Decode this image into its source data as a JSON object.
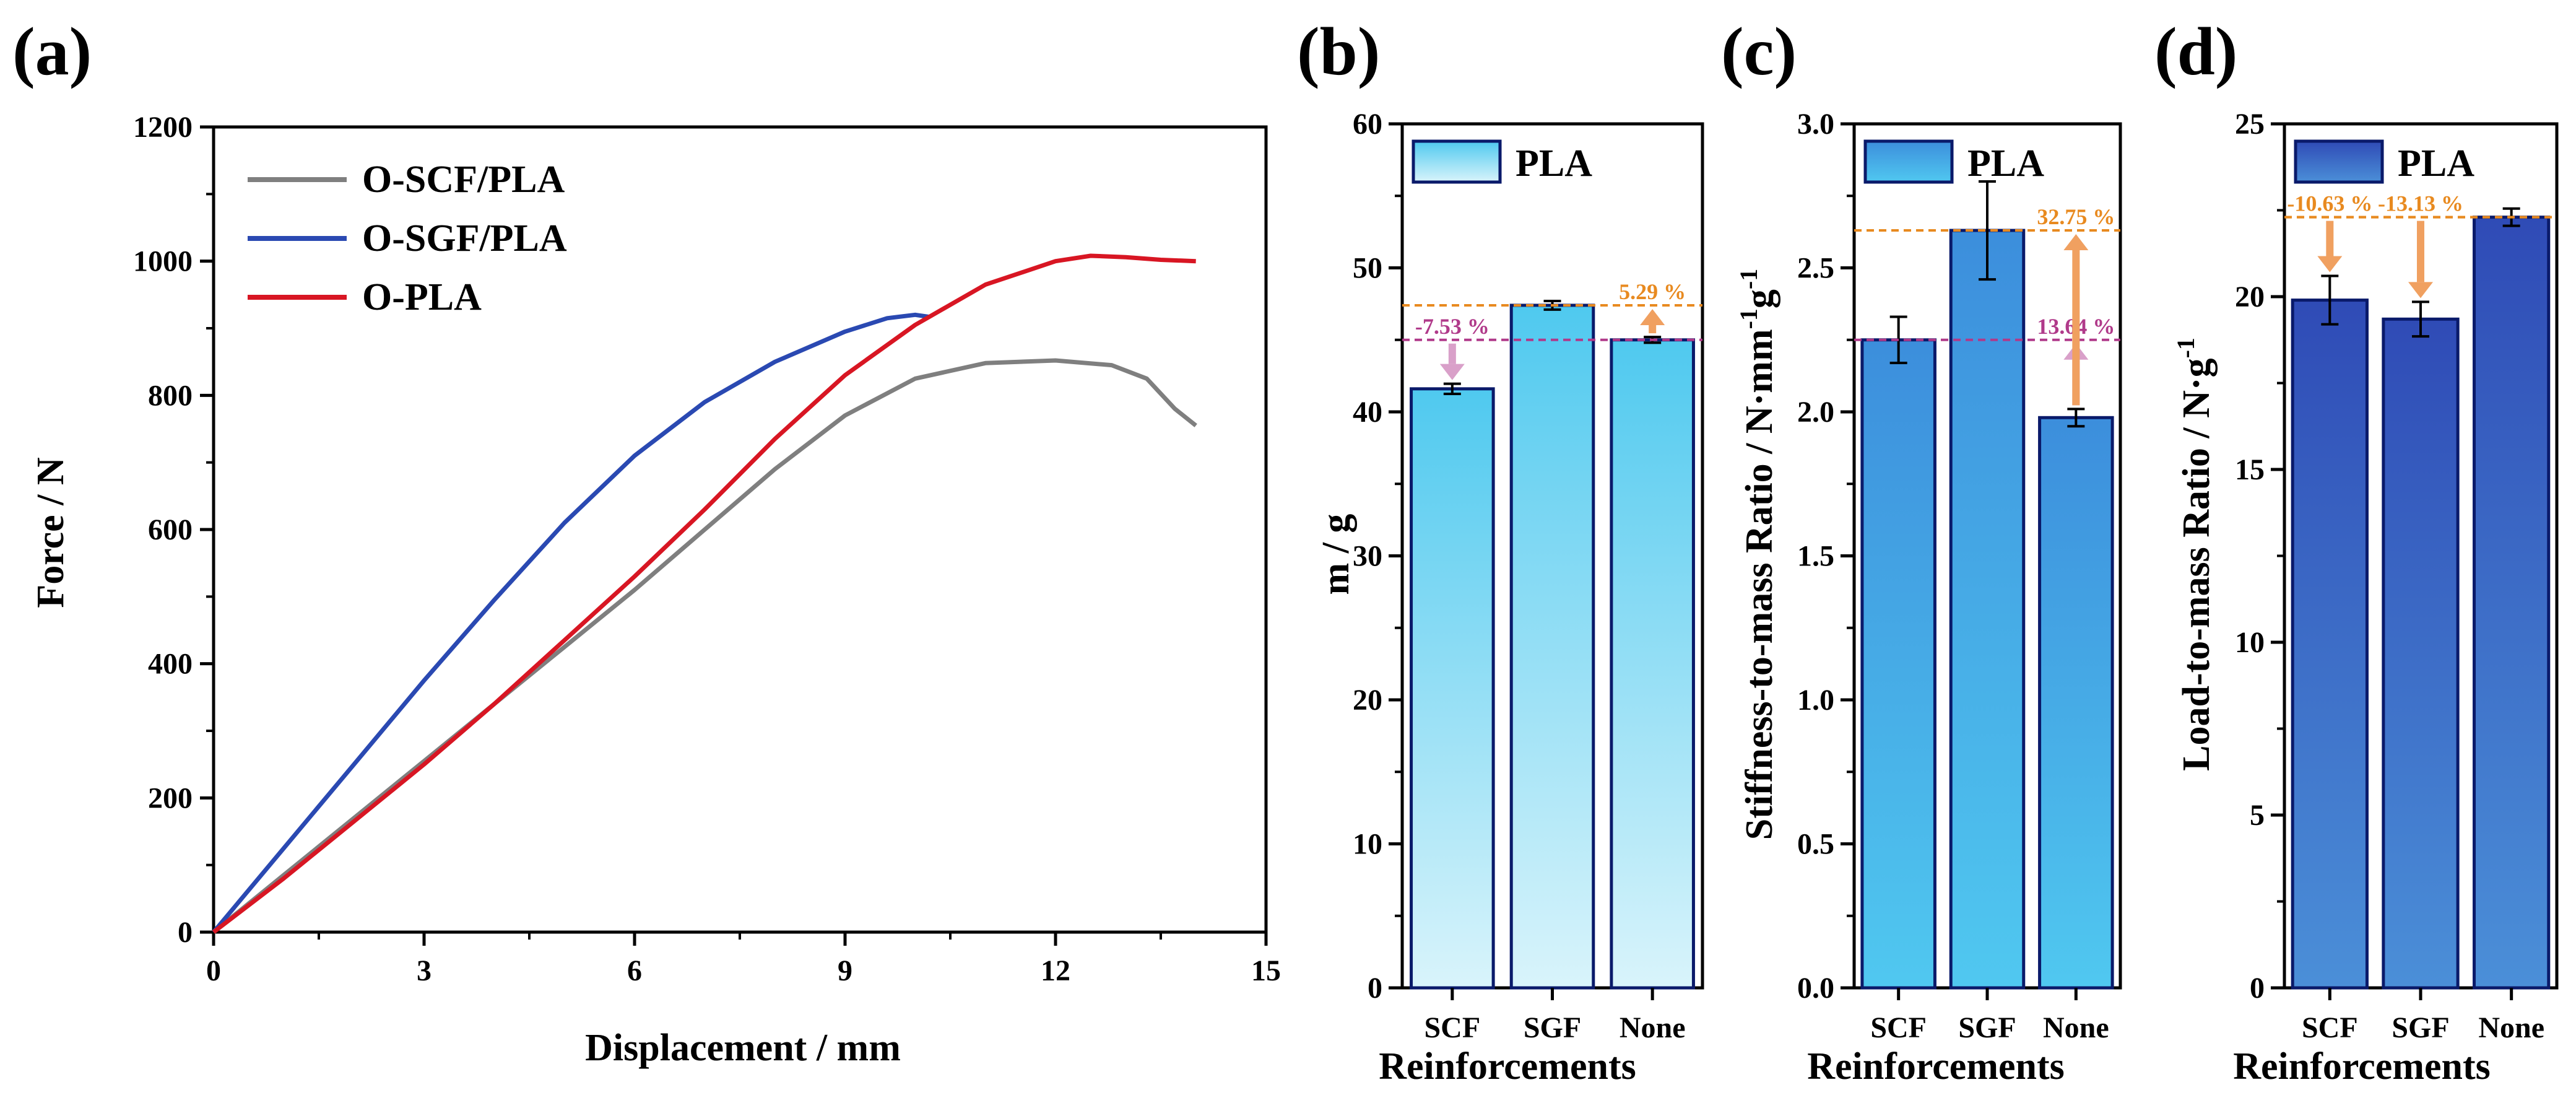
{
  "panel_labels": [
    "(a)",
    "(b)",
    "(c)",
    "(d)"
  ],
  "colors": {
    "scf": "#7f7f7f",
    "sgf": "#2a49b2",
    "pla": "#d81623",
    "orange": "#f0a060",
    "orange_line": "#e88a20",
    "pink": "#d9a0c9",
    "pink_line": "#b03a8a",
    "bar_b_top": "#4fc9ef",
    "bar_b_bottom": "#d9f4fb",
    "bar_c_top": "#3c8edc",
    "bar_c_bottom": "#50c8f0",
    "bar_d_top": "#2f4bb6",
    "bar_d_bottom": "#4b8fd8",
    "bar_stroke": "#0a1a6a"
  },
  "chart_data": [
    {
      "type": "line",
      "panel": "(a)",
      "xlabel": "Displacement / mm",
      "ylabel": "Force / N",
      "xlim": [
        0,
        15
      ],
      "ylim": [
        0,
        1200
      ],
      "xticks": [
        0,
        3,
        6,
        9,
        12,
        15
      ],
      "yticks": [
        0,
        200,
        400,
        600,
        800,
        1000,
        1200
      ],
      "legend_position": "top-left",
      "series": [
        {
          "name": "O-SCF/PLA",
          "color_key": "scf",
          "points": [
            [
              0,
              0
            ],
            [
              1,
              85
            ],
            [
              2,
              170
            ],
            [
              3,
              255
            ],
            [
              4,
              340
            ],
            [
              5,
              425
            ],
            [
              6,
              510
            ],
            [
              7,
              600
            ],
            [
              8,
              690
            ],
            [
              9,
              770
            ],
            [
              10,
              825
            ],
            [
              11,
              848
            ],
            [
              12,
              852
            ],
            [
              12.8,
              845
            ],
            [
              13.3,
              825
            ],
            [
              13.7,
              780
            ],
            [
              14,
              755
            ]
          ]
        },
        {
          "name": "O-SGF/PLA",
          "color_key": "sgf",
          "points": [
            [
              0,
              0
            ],
            [
              1,
              125
            ],
            [
              2,
              250
            ],
            [
              3,
              375
            ],
            [
              4,
              495
            ],
            [
              5,
              610
            ],
            [
              6,
              710
            ],
            [
              7,
              790
            ],
            [
              8,
              850
            ],
            [
              9,
              895
            ],
            [
              9.6,
              915
            ],
            [
              10,
              920
            ],
            [
              10.2,
              917
            ]
          ]
        },
        {
          "name": "O-PLA",
          "color_key": "pla",
          "points": [
            [
              0,
              0
            ],
            [
              1,
              80
            ],
            [
              2,
              165
            ],
            [
              3,
              250
            ],
            [
              4,
              340
            ],
            [
              5,
              435
            ],
            [
              6,
              530
            ],
            [
              7,
              630
            ],
            [
              8,
              735
            ],
            [
              9,
              830
            ],
            [
              10,
              905
            ],
            [
              11,
              965
            ],
            [
              12,
              1000
            ],
            [
              12.5,
              1008
            ],
            [
              13,
              1006
            ],
            [
              13.5,
              1002
            ],
            [
              14,
              1000
            ]
          ]
        }
      ]
    },
    {
      "type": "bar",
      "panel": "(b)",
      "xlabel": "Reinforcements",
      "ylabel": "m / g",
      "categories": [
        "SCF",
        "SGF",
        "None"
      ],
      "values": [
        41.6,
        47.4,
        45.0
      ],
      "errors": [
        0.35,
        0.3,
        0.2
      ],
      "ylim": [
        0,
        60
      ],
      "yticks": [
        0,
        10,
        20,
        30,
        40,
        50,
        60
      ],
      "legend": "PLA",
      "gradient": [
        "bar_b_top",
        "bar_b_bottom"
      ],
      "annotations": [
        {
          "text": "-7.53 %",
          "color_key": "pink_line",
          "from_cat": 0,
          "ref": 45.0,
          "to": 41.6,
          "arrow": "down"
        },
        {
          "text": "5.29 %",
          "color_key": "orange_line",
          "from_cat": 2,
          "ref": 47.4,
          "to": 45.0,
          "arrow": "up"
        }
      ]
    },
    {
      "type": "bar",
      "panel": "(c)",
      "xlabel": "Reinforcements",
      "ylabel": "Stiffness-to-mass Ratio / N·mm",
      "ylabel_sup1": "-1",
      "ylabel_mid": "g",
      "ylabel_sup2": "-1",
      "categories": [
        "SCF",
        "SGF",
        "None"
      ],
      "values": [
        2.25,
        2.63,
        1.98
      ],
      "errors": [
        0.08,
        0.17,
        0.03
      ],
      "ylim": [
        0,
        3.0
      ],
      "yticks": [
        "0.0",
        "0.5",
        "1.0",
        "1.5",
        "2.0",
        "2.5",
        "3.0"
      ],
      "legend": "PLA",
      "gradient": [
        "bar_c_top",
        "bar_c_bottom"
      ],
      "annotations": [
        {
          "text": "13.64 %",
          "color_key": "pink_line",
          "from_cat": 2,
          "ref": 2.25,
          "to": 1.98,
          "arrow": "up"
        },
        {
          "text": "32.75 %",
          "color_key": "orange_line",
          "from_cat": 2,
          "ref": 2.63,
          "to": 1.98,
          "arrow": "up"
        }
      ]
    },
    {
      "type": "bar",
      "panel": "(d)",
      "xlabel": "Reinforcements",
      "ylabel": "Load-to-mass Ratio / N·g",
      "ylabel_sup1": "-1",
      "categories": [
        "SCF",
        "SGF",
        "None"
      ],
      "values": [
        19.9,
        19.35,
        22.3
      ],
      "errors": [
        0.7,
        0.5,
        0.25
      ],
      "ylim": [
        0,
        25
      ],
      "yticks": [
        0,
        5,
        10,
        15,
        20,
        25
      ],
      "legend": "PLA",
      "gradient": [
        "bar_d_top",
        "bar_d_bottom"
      ],
      "annotations": [
        {
          "text": "-10.63 %",
          "color_key": "orange_line",
          "from_cat": 0,
          "ref": 22.3,
          "to": 19.9,
          "arrow": "down"
        },
        {
          "text": "-13.13 %",
          "color_key": "orange_line",
          "from_cat": 1,
          "ref": 22.3,
          "to": 19.35,
          "arrow": "down"
        }
      ]
    }
  ]
}
